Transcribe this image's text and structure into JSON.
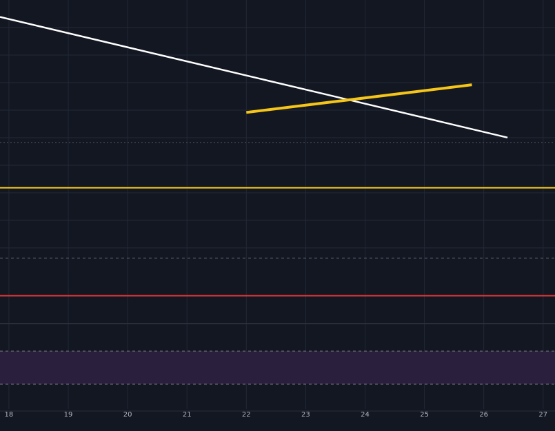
{
  "theme": {
    "background": "#131722",
    "grid": "#232838",
    "up": "#26a69a",
    "down": "#ef5350",
    "up_volume": "#1f6f76",
    "down_volume": "#8c3b3b",
    "rsi_line": "#d98a2b",
    "rsi_band": "#2a1f3d",
    "yellow": "#f5c518",
    "white": "#ffffff",
    "red_line": "#e53935"
  },
  "chart_data": {
    "type": "candlestick",
    "x_axis": {
      "ticks": [
        "18",
        "19",
        "20",
        "21",
        "22",
        "23",
        "24",
        "25",
        "26",
        "27"
      ],
      "tick_days": [
        18,
        19,
        20,
        21,
        22,
        23,
        24,
        25,
        26,
        27
      ],
      "range": [
        17.85,
        27.2
      ]
    },
    "price_range": [
      0.0,
      100.0
    ],
    "candles": [],
    "volume_range": [
      0,
      100
    ],
    "rsi_range": [
      0,
      100
    ],
    "rsi_levels": [
      70,
      30
    ],
    "annotations": {
      "white_trendline": [
        [
          17.85,
          96.0
        ],
        [
          26.4,
          48.0
        ]
      ],
      "yellow_trendline": [
        [
          22.0,
          58.0
        ],
        [
          25.8,
          69.0
        ]
      ],
      "yellow_support": 28.0,
      "red_volume_line": 38,
      "dotted_price_level": 46.0
    }
  }
}
